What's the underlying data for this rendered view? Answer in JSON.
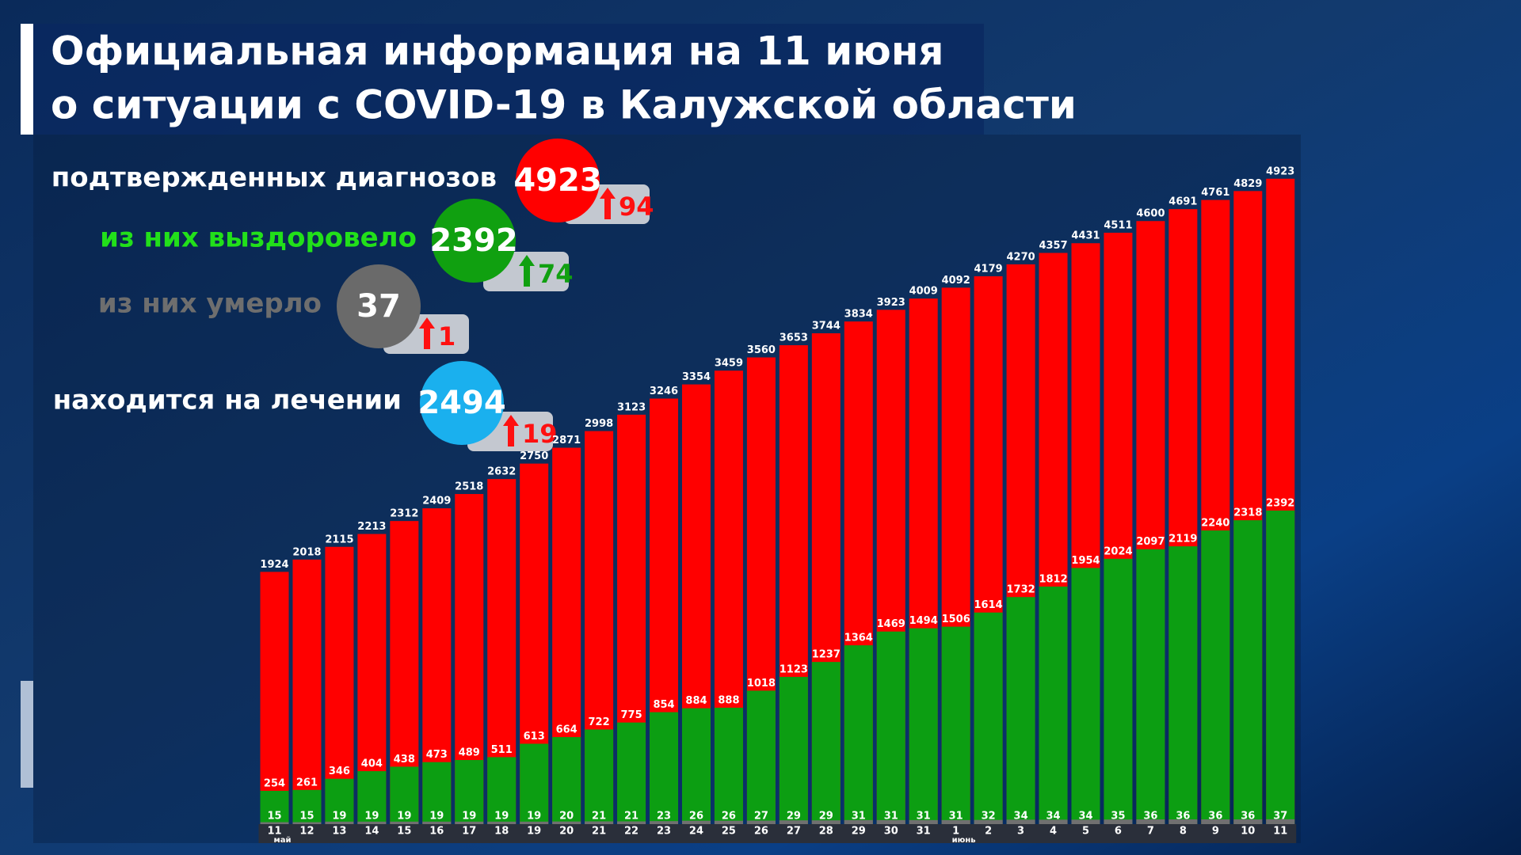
{
  "chart_data": {
    "type": "bar",
    "stacked": false,
    "title_lines": [
      "Официальная информация на 11 июня",
      "о ситуации с COVID-19 в Калужской области"
    ],
    "summary": [
      {
        "label": "подтвержденных диагнозов",
        "label_color": "#ffffff",
        "value": 4923,
        "color": "#ff0000",
        "change": 94,
        "change_color": "#ff1010"
      },
      {
        "label": "из них выздоровело",
        "label_color": "#22e01a",
        "value": 2392,
        "color": "#10a010",
        "change": 74,
        "change_color": "#10a010"
      },
      {
        "label": "из них умерло",
        "label_color": "#6e6e6e",
        "value": 37,
        "color": "#6a6a6a",
        "change": 1,
        "change_color": "#ff1010"
      },
      {
        "label": "находится на лечении",
        "label_color": "#ffffff",
        "value": 2494,
        "color": "#1ab0ee",
        "change": 19,
        "change_color": "#ff1010"
      }
    ],
    "categories": [
      "11",
      "12",
      "13",
      "14",
      "15",
      "16",
      "17",
      "18",
      "19",
      "20",
      "21",
      "22",
      "23",
      "24",
      "25",
      "26",
      "27",
      "28",
      "29",
      "30",
      "31",
      "1",
      "2",
      "3",
      "4",
      "5",
      "6",
      "7",
      "8",
      "9",
      "10",
      "11"
    ],
    "month_labels": [
      {
        "label": "май",
        "category_index": 0
      },
      {
        "label": "июнь",
        "category_index": 21
      }
    ],
    "series": [
      {
        "color": "#ff0000",
        "values": [
          1924,
          2018,
          2115,
          2213,
          2312,
          2409,
          2518,
          2632,
          2750,
          2871,
          2998,
          3123,
          3246,
          3354,
          3459,
          3560,
          3653,
          3744,
          3834,
          3923,
          4009,
          4092,
          4179,
          4270,
          4357,
          4431,
          4511,
          4600,
          4691,
          4761,
          4829,
          4923
        ]
      },
      {
        "color": "#0c9e12",
        "values": [
          254,
          261,
          346,
          404,
          438,
          473,
          489,
          511,
          613,
          664,
          722,
          775,
          854,
          884,
          888,
          1018,
          1123,
          1237,
          1364,
          1469,
          1494,
          1506,
          1614,
          1732,
          1812,
          1954,
          2024,
          2097,
          2119,
          2240,
          2318,
          2392
        ]
      },
      {
        "color": "#707070",
        "values": [
          15,
          15,
          19,
          19,
          19,
          19,
          19,
          19,
          19,
          20,
          21,
          21,
          23,
          26,
          26,
          27,
          29,
          29,
          31,
          31,
          31,
          31,
          32,
          34,
          34,
          34,
          35,
          36,
          36,
          36,
          36,
          37
        ]
      }
    ],
    "ylim": [
      0,
      5000
    ]
  }
}
